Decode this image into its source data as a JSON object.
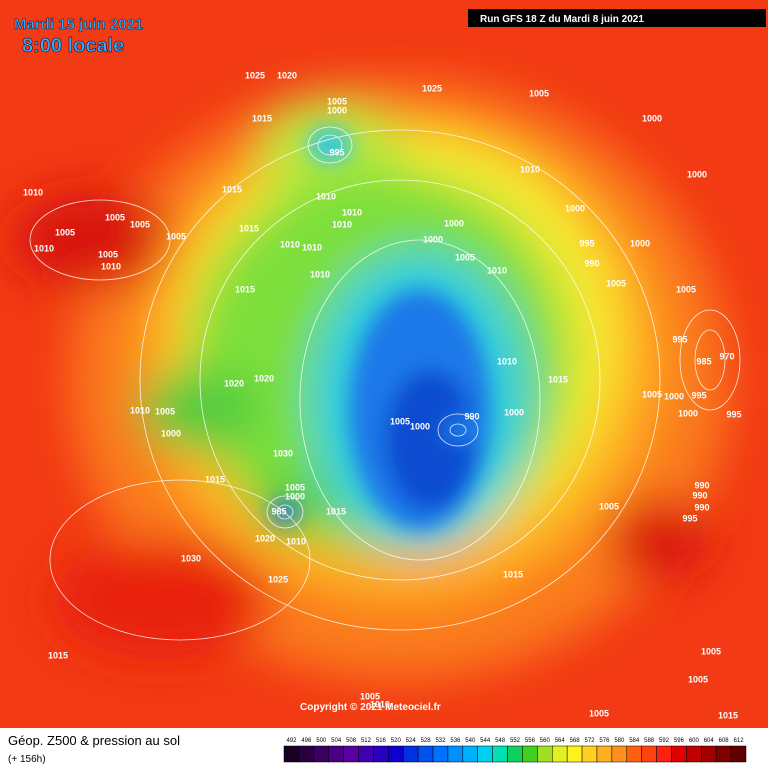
{
  "header": {
    "title": "Mardi 15 juin 2021",
    "time": "8:00 locale",
    "run": "Run GFS 18 Z du Mardi 8 juin 2021"
  },
  "copyright": "Copyright © 2021 Meteociel.fr",
  "footer": {
    "product": "Géop. Z500 & pression au sol",
    "lead": "(+ 156h)"
  },
  "scale": [
    492,
    496,
    500,
    504,
    508,
    512,
    516,
    520,
    524,
    528,
    532,
    536,
    540,
    544,
    548,
    552,
    556,
    560,
    564,
    568,
    572,
    576,
    580,
    584,
    588,
    592,
    596,
    600,
    604,
    608,
    612
  ],
  "pressure_labels": [
    1025,
    1020,
    1025,
    1005,
    1005,
    1000,
    1015,
    1000,
    995,
    1010,
    1000,
    1015,
    1010,
    1010,
    1010,
    1005,
    1005,
    1000,
    1000,
    1005,
    1010,
    1005,
    1000,
    995,
    1000,
    1015,
    1010,
    1010,
    1010,
    1005,
    1005,
    1010,
    990,
    1010,
    1010,
    1015,
    1005,
    1005,
    995,
    985,
    970,
    1010,
    1015,
    1020,
    1020,
    1010,
    1005,
    1000,
    1005,
    1000,
    995,
    1000,
    995,
    1000,
    990,
    1005,
    1000,
    1030,
    1015,
    990,
    990,
    990,
    995,
    1005,
    1005,
    1000,
    985,
    1015,
    1020,
    1010,
    1030,
    1015,
    1025,
    1015,
    1005,
    1005,
    1005,
    1010,
    1005,
    1015
  ]
}
